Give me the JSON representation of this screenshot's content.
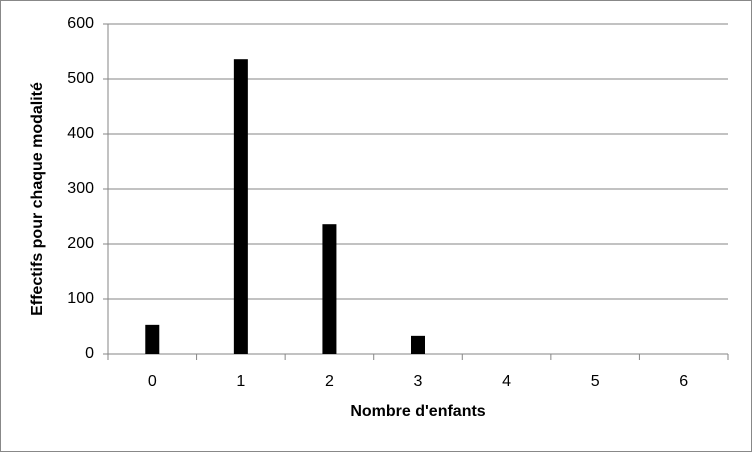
{
  "chart_data": {
    "type": "bar",
    "x_label": "Nombre d'enfants",
    "y_label": "Effectifs pour chaque modalité",
    "categories": [
      "0",
      "1",
      "2",
      "3",
      "4",
      "5",
      "6"
    ],
    "values": [
      53,
      536,
      236,
      33,
      0,
      0,
      0
    ],
    "color": "#000000",
    "ylim": [
      0,
      600
    ],
    "yticks": [
      0,
      100,
      200,
      300,
      400,
      500,
      600
    ],
    "grid": true
  }
}
